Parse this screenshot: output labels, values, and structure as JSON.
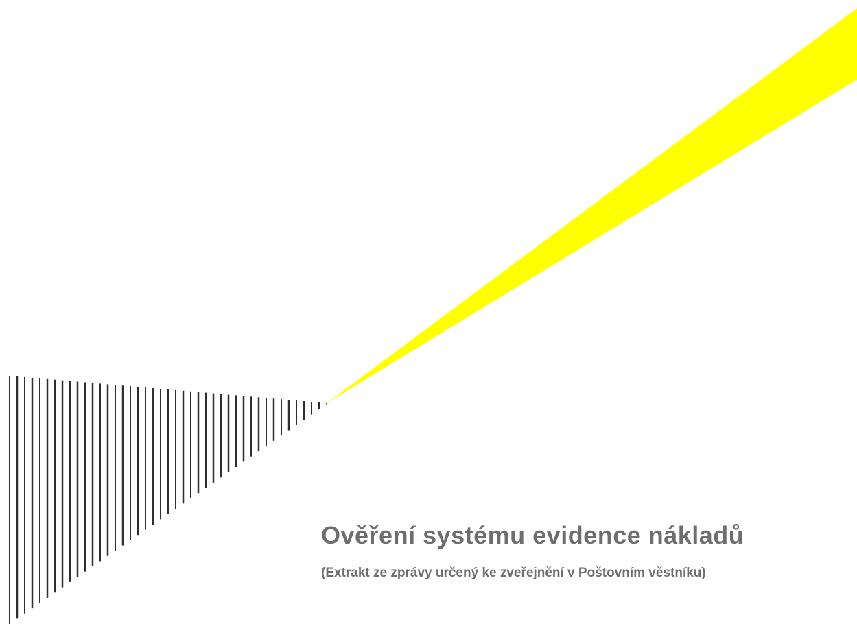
{
  "title": "Ověření systému evidence nákladů",
  "subtitle": "(Extrakt ze zprávy určený ke zveřejnění v Poštovním věstníku)"
}
